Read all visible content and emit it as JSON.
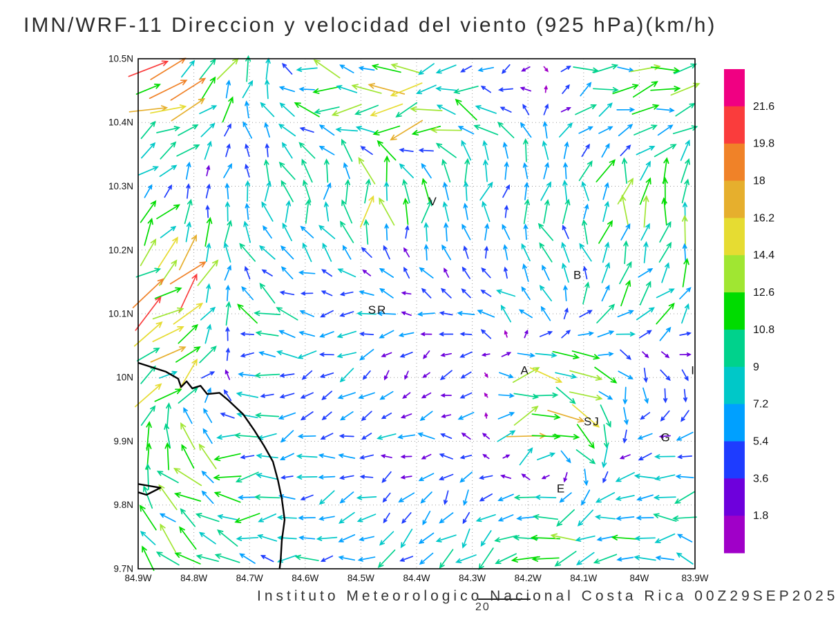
{
  "title": "IMN/WRF-11 Direccion y velocidad del viento (925 hPa)(km/h)",
  "caption": {
    "institute": "Instituto Meteorologico Nacional Costa Rica 00Z29SEP2025",
    "page_number": "20"
  },
  "chart_data": {
    "type": "vector_field",
    "variable": "wind direction and velocity",
    "model": "IMN/WRF-11",
    "level": "925 hPa",
    "units": "km/h",
    "valid_time": "00Z29SEP2025",
    "map": {
      "lon_left_w": 84.9,
      "lon_right_w": 83.9,
      "lat_top": 10.5,
      "lat_bottom": 9.7
    },
    "grid_dotted": true,
    "x_ticks": [
      {
        "v": 84.9,
        "label": "84.9W"
      },
      {
        "v": 84.8,
        "label": "84.8W"
      },
      {
        "v": 84.7,
        "label": "84.7W"
      },
      {
        "v": 84.6,
        "label": "84.6W"
      },
      {
        "v": 84.5,
        "label": "84.5W"
      },
      {
        "v": 84.4,
        "label": "84.4W"
      },
      {
        "v": 84.3,
        "label": "84.3W"
      },
      {
        "v": 84.2,
        "label": "84.2W"
      },
      {
        "v": 84.1,
        "label": "84.1W"
      },
      {
        "v": 84.0,
        "label": "84W"
      },
      {
        "v": 83.9,
        "label": "83.9W"
      }
    ],
    "y_ticks": [
      {
        "v": 10.5,
        "label": "10.5N"
      },
      {
        "v": 10.4,
        "label": "10.4N"
      },
      {
        "v": 10.3,
        "label": "10.3N"
      },
      {
        "v": 10.2,
        "label": "10.2N"
      },
      {
        "v": 10.1,
        "label": "10.1N"
      },
      {
        "v": 10.0,
        "label": "10N"
      },
      {
        "v": 9.9,
        "label": "9.9N"
      },
      {
        "v": 9.8,
        "label": "9.8N"
      },
      {
        "v": 9.7,
        "label": "9.7N"
      }
    ],
    "colorbar": {
      "levels_kmh": [
        1.8,
        3.6,
        5.4,
        7.2,
        9,
        10.8,
        12.6,
        14.4,
        16.2,
        18,
        19.8,
        21.6
      ],
      "colors_low_to_high": [
        "#A000C8",
        "#6E00DC",
        "#1E3CFF",
        "#00A0FF",
        "#00C8C8",
        "#00D28C",
        "#00DC00",
        "#A0E632",
        "#E6DC32",
        "#E6AF2D",
        "#F08228",
        "#FA3C3C",
        "#F00082"
      ],
      "labels_top_to_bottom": [
        "21.6",
        "19.8",
        "18",
        "16.2",
        "14.4",
        "12.6",
        "10.8",
        "9",
        "7.2",
        "5.4",
        "3.6",
        "1.8"
      ]
    },
    "city_labels": [
      {
        "text": "V",
        "lon_w": 84.37,
        "lat": 10.27
      },
      {
        "text": "B",
        "lon_w": 84.11,
        "lat": 10.155
      },
      {
        "text": "SR",
        "lon_w": 84.47,
        "lat": 10.1
      },
      {
        "text": "A",
        "lon_w": 84.205,
        "lat": 10.005
      },
      {
        "text": "SJ",
        "lon_w": 84.085,
        "lat": 9.925
      },
      {
        "text": "G",
        "lon_w": 83.952,
        "lat": 9.9
      },
      {
        "text": "E",
        "lon_w": 84.14,
        "lat": 9.82
      },
      {
        "text": "I",
        "lon_w": 83.903,
        "lat": 10.005
      }
    ],
    "coastline": {
      "main": [
        [
          84.9,
          10.023
        ],
        [
          84.85,
          10.009
        ],
        [
          84.828,
          9.998
        ],
        [
          84.823,
          9.985
        ],
        [
          84.813,
          9.994
        ],
        [
          84.803,
          9.983
        ],
        [
          84.788,
          9.987
        ],
        [
          84.776,
          9.974
        ],
        [
          84.754,
          9.976
        ],
        [
          84.739,
          9.965
        ],
        [
          84.711,
          9.942
        ],
        [
          84.692,
          9.918
        ],
        [
          84.674,
          9.893
        ],
        [
          84.658,
          9.868
        ],
        [
          84.649,
          9.839
        ],
        [
          84.642,
          9.81
        ],
        [
          84.637,
          9.777
        ],
        [
          84.642,
          9.744
        ],
        [
          84.644,
          9.714
        ],
        [
          84.646,
          9.7
        ]
      ],
      "inlet": [
        [
          84.9,
          9.833
        ],
        [
          84.86,
          9.827
        ],
        [
          84.885,
          9.816
        ],
        [
          84.9,
          9.82
        ]
      ]
    },
    "wind_field": {
      "note": "coarse sampled field; dir = degrees math convention (0=toward east, 90=toward north), speed km/h",
      "lon_w_start": 84.9,
      "lon_step_w": 0.1,
      "lat_start": 10.5,
      "lat_step": 0.1,
      "cells_dir_speed": [
        [
          [
            20,
            16
          ],
          [
            32,
            14
          ],
          [
            70,
            10
          ],
          [
            165,
            10
          ],
          [
            182,
            9
          ],
          [
            188,
            10
          ],
          [
            210,
            5
          ],
          [
            240,
            4
          ],
          [
            15,
            8
          ],
          [
            8,
            10
          ],
          [
            3,
            11
          ]
        ],
        [
          [
            28,
            15
          ],
          [
            42,
            13
          ],
          [
            95,
            8
          ],
          [
            160,
            9
          ],
          [
            185,
            12
          ],
          [
            192,
            16
          ],
          [
            150,
            12
          ],
          [
            120,
            6
          ],
          [
            40,
            7
          ],
          [
            15,
            9
          ],
          [
            8,
            10
          ]
        ],
        [
          [
            55,
            7
          ],
          [
            100,
            4
          ],
          [
            95,
            6
          ],
          [
            100,
            8
          ],
          [
            85,
            16
          ],
          [
            80,
            10
          ],
          [
            75,
            8
          ],
          [
            85,
            8
          ],
          [
            80,
            9
          ],
          [
            82,
            13
          ],
          [
            80,
            14
          ]
        ],
        [
          [
            48,
            13
          ],
          [
            52,
            14
          ],
          [
            115,
            7
          ],
          [
            130,
            6
          ],
          [
            140,
            6
          ],
          [
            115,
            5
          ],
          [
            100,
            6
          ],
          [
            115,
            7
          ],
          [
            105,
            8
          ],
          [
            65,
            9
          ],
          [
            70,
            11
          ]
        ],
        [
          [
            40,
            14
          ],
          [
            45,
            15
          ],
          [
            150,
            9
          ],
          [
            175,
            7
          ],
          [
            195,
            6
          ],
          [
            170,
            5
          ],
          [
            160,
            6
          ],
          [
            140,
            7
          ],
          [
            35,
            8
          ],
          [
            40,
            9
          ],
          [
            48,
            9
          ]
        ],
        [
          [
            38,
            13
          ],
          [
            42,
            12
          ],
          [
            185,
            8
          ],
          [
            205,
            6
          ],
          [
            215,
            5
          ],
          [
            245,
            4
          ],
          [
            200,
            5
          ],
          [
            5,
            16
          ],
          [
            335,
            12
          ],
          [
            285,
            6
          ],
          [
            300,
            4
          ]
        ],
        [
          [
            60,
            12
          ],
          [
            140,
            11
          ],
          [
            200,
            8
          ],
          [
            195,
            6
          ],
          [
            185,
            6
          ],
          [
            175,
            5
          ],
          [
            165,
            6
          ],
          [
            25,
            13
          ],
          [
            310,
            14
          ],
          [
            200,
            7
          ],
          [
            215,
            6
          ]
        ],
        [
          [
            130,
            11
          ],
          [
            150,
            10
          ],
          [
            185,
            8
          ],
          [
            200,
            7
          ],
          [
            210,
            6
          ],
          [
            235,
            6
          ],
          [
            250,
            7
          ],
          [
            185,
            12
          ],
          [
            210,
            10
          ],
          [
            195,
            8
          ],
          [
            185,
            7
          ]
        ],
        [
          [
            140,
            10
          ],
          [
            155,
            9
          ],
          [
            165,
            8
          ],
          [
            185,
            7
          ],
          [
            195,
            7
          ],
          [
            205,
            8
          ],
          [
            215,
            8
          ],
          [
            195,
            9
          ],
          [
            185,
            10
          ],
          [
            172,
            9
          ],
          [
            165,
            8
          ]
        ]
      ]
    },
    "display_grid": {
      "cols": 28,
      "rows": 25,
      "angle_jitter_deg": 28,
      "speed_jitter": 0.42
    }
  }
}
